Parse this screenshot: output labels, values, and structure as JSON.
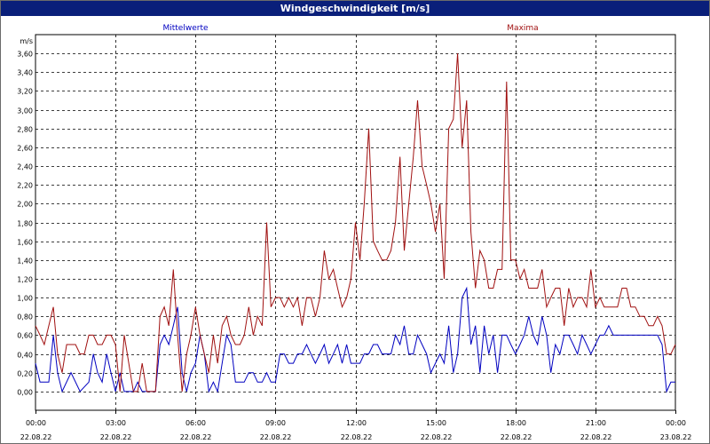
{
  "window": {
    "title": "Windgeschwindigkeit [m/s]"
  },
  "chart_data": {
    "type": "line",
    "title": "Windgeschwindigkeit [m/s]",
    "ylabel": "m/s",
    "ylim": [
      -0.2,
      3.8
    ],
    "yticks": [
      0,
      0.2,
      0.4,
      0.6,
      0.8,
      1.0,
      1.2,
      1.4,
      1.6,
      1.8,
      2.0,
      2.2,
      2.4,
      2.6,
      2.8,
      3.0,
      3.2,
      3.4,
      3.6
    ],
    "ytick_labels": [
      "0,00",
      "0,20",
      "0,40",
      "0,60",
      "0,80",
      "1,00",
      "1,20",
      "1,40",
      "1,60",
      "1,80",
      "2,00",
      "2,20",
      "2,40",
      "2,60",
      "2,80",
      "3,00",
      "3,20",
      "3,40",
      "3,60"
    ],
    "xlim": [
      0,
      24
    ],
    "xticks": [
      {
        "hour": 0,
        "time": "00:00",
        "date": "22.08.22"
      },
      {
        "hour": 3,
        "time": "03:00",
        "date": "22.08.22"
      },
      {
        "hour": 6,
        "time": "06:00",
        "date": "22.08.22"
      },
      {
        "hour": 9,
        "time": "09:00",
        "date": "22.08.22"
      },
      {
        "hour": 12,
        "time": "12:00",
        "date": "22.08.22"
      },
      {
        "hour": 15,
        "time": "15:00",
        "date": "22.08.22"
      },
      {
        "hour": 18,
        "time": "18:00",
        "date": "22.08.22"
      },
      {
        "hour": 21,
        "time": "21:00",
        "date": "22.08.22"
      },
      {
        "hour": 24,
        "time": "00:00",
        "date": "23.08.22"
      }
    ],
    "grid": true,
    "series": [
      {
        "name": "Mittelwerte",
        "color": "#0000c0",
        "points": [
          [
            0,
            0.3
          ],
          [
            0.17,
            0.1
          ],
          [
            0.5,
            0.1
          ],
          [
            0.67,
            0.6
          ],
          [
            0.83,
            0.2
          ],
          [
            1.0,
            0.0
          ],
          [
            1.33,
            0.2
          ],
          [
            1.67,
            0.0
          ],
          [
            2.0,
            0.1
          ],
          [
            2.17,
            0.4
          ],
          [
            2.33,
            0.2
          ],
          [
            2.5,
            0.1
          ],
          [
            2.67,
            0.4
          ],
          [
            2.83,
            0.2
          ],
          [
            3.0,
            0.0
          ],
          [
            3.17,
            0.2
          ],
          [
            3.33,
            0.0
          ],
          [
            3.5,
            0.0
          ],
          [
            3.67,
            0.0
          ],
          [
            3.83,
            0.1
          ],
          [
            4.0,
            0.0
          ],
          [
            4.17,
            0.0
          ],
          [
            4.33,
            0.0
          ],
          [
            4.5,
            0.0
          ],
          [
            4.67,
            0.5
          ],
          [
            4.83,
            0.6
          ],
          [
            5.0,
            0.5
          ],
          [
            5.17,
            0.7
          ],
          [
            5.33,
            0.9
          ],
          [
            5.5,
            0.2
          ],
          [
            5.67,
            0.0
          ],
          [
            5.83,
            0.2
          ],
          [
            6.0,
            0.3
          ],
          [
            6.17,
            0.6
          ],
          [
            6.33,
            0.4
          ],
          [
            6.5,
            0.0
          ],
          [
            6.67,
            0.1
          ],
          [
            6.83,
            0.0
          ],
          [
            7.0,
            0.3
          ],
          [
            7.17,
            0.6
          ],
          [
            7.33,
            0.5
          ],
          [
            7.5,
            0.1
          ],
          [
            7.67,
            0.1
          ],
          [
            7.83,
            0.1
          ],
          [
            8.0,
            0.2
          ],
          [
            8.17,
            0.2
          ],
          [
            8.33,
            0.1
          ],
          [
            8.5,
            0.1
          ],
          [
            8.67,
            0.2
          ],
          [
            8.83,
            0.1
          ],
          [
            9.0,
            0.1
          ],
          [
            9.17,
            0.4
          ],
          [
            9.33,
            0.4
          ],
          [
            9.5,
            0.3
          ],
          [
            9.67,
            0.3
          ],
          [
            9.83,
            0.4
          ],
          [
            10.0,
            0.4
          ],
          [
            10.17,
            0.5
          ],
          [
            10.33,
            0.4
          ],
          [
            10.5,
            0.3
          ],
          [
            10.67,
            0.4
          ],
          [
            10.83,
            0.5
          ],
          [
            11.0,
            0.3
          ],
          [
            11.17,
            0.4
          ],
          [
            11.33,
            0.5
          ],
          [
            11.5,
            0.3
          ],
          [
            11.67,
            0.5
          ],
          [
            11.83,
            0.3
          ],
          [
            12.0,
            0.3
          ],
          [
            12.17,
            0.3
          ],
          [
            12.33,
            0.4
          ],
          [
            12.5,
            0.4
          ],
          [
            12.67,
            0.5
          ],
          [
            12.83,
            0.5
          ],
          [
            13.0,
            0.4
          ],
          [
            13.17,
            0.4
          ],
          [
            13.33,
            0.4
          ],
          [
            13.5,
            0.6
          ],
          [
            13.67,
            0.5
          ],
          [
            13.83,
            0.7
          ],
          [
            14.0,
            0.4
          ],
          [
            14.17,
            0.4
          ],
          [
            14.33,
            0.6
          ],
          [
            14.5,
            0.5
          ],
          [
            14.67,
            0.4
          ],
          [
            14.83,
            0.2
          ],
          [
            15.0,
            0.3
          ],
          [
            15.17,
            0.4
          ],
          [
            15.33,
            0.3
          ],
          [
            15.5,
            0.7
          ],
          [
            15.67,
            0.2
          ],
          [
            15.83,
            0.4
          ],
          [
            16.0,
            1.0
          ],
          [
            16.17,
            1.1
          ],
          [
            16.33,
            0.5
          ],
          [
            16.5,
            0.7
          ],
          [
            16.67,
            0.2
          ],
          [
            16.83,
            0.7
          ],
          [
            17.0,
            0.4
          ],
          [
            17.17,
            0.6
          ],
          [
            17.33,
            0.2
          ],
          [
            17.5,
            0.6
          ],
          [
            17.67,
            0.6
          ],
          [
            17.83,
            0.5
          ],
          [
            18.0,
            0.4
          ],
          [
            18.17,
            0.5
          ],
          [
            18.33,
            0.6
          ],
          [
            18.5,
            0.8
          ],
          [
            18.67,
            0.6
          ],
          [
            18.83,
            0.5
          ],
          [
            19.0,
            0.8
          ],
          [
            19.17,
            0.6
          ],
          [
            19.33,
            0.2
          ],
          [
            19.5,
            0.5
          ],
          [
            19.67,
            0.4
          ],
          [
            19.83,
            0.6
          ],
          [
            20.0,
            0.6
          ],
          [
            20.17,
            0.5
          ],
          [
            20.33,
            0.4
          ],
          [
            20.5,
            0.6
          ],
          [
            20.67,
            0.5
          ],
          [
            20.83,
            0.4
          ],
          [
            21.0,
            0.5
          ],
          [
            21.17,
            0.6
          ],
          [
            21.33,
            0.6
          ],
          [
            21.5,
            0.7
          ],
          [
            21.67,
            0.6
          ],
          [
            21.83,
            0.6
          ],
          [
            22.0,
            0.6
          ],
          [
            22.17,
            0.6
          ],
          [
            22.33,
            0.6
          ],
          [
            22.5,
            0.6
          ],
          [
            22.67,
            0.6
          ],
          [
            22.83,
            0.6
          ],
          [
            23.0,
            0.6
          ],
          [
            23.17,
            0.6
          ],
          [
            23.33,
            0.6
          ],
          [
            23.5,
            0.5
          ],
          [
            23.67,
            0.0
          ],
          [
            23.83,
            0.1
          ],
          [
            24.0,
            0.1
          ]
        ]
      },
      {
        "name": "Maxima",
        "color": "#a01010",
        "points": [
          [
            0,
            0.7
          ],
          [
            0.17,
            0.6
          ],
          [
            0.33,
            0.5
          ],
          [
            0.5,
            0.7
          ],
          [
            0.67,
            0.9
          ],
          [
            0.83,
            0.4
          ],
          [
            1.0,
            0.2
          ],
          [
            1.17,
            0.5
          ],
          [
            1.33,
            0.5
          ],
          [
            1.5,
            0.5
          ],
          [
            1.67,
            0.4
          ],
          [
            1.83,
            0.4
          ],
          [
            2.0,
            0.6
          ],
          [
            2.17,
            0.6
          ],
          [
            2.33,
            0.5
          ],
          [
            2.5,
            0.5
          ],
          [
            2.67,
            0.6
          ],
          [
            2.83,
            0.6
          ],
          [
            3.0,
            0.5
          ],
          [
            3.17,
            0.0
          ],
          [
            3.33,
            0.6
          ],
          [
            3.5,
            0.3
          ],
          [
            3.67,
            0.0
          ],
          [
            3.83,
            0.0
          ],
          [
            4.0,
            0.3
          ],
          [
            4.17,
            0.0
          ],
          [
            4.33,
            0.0
          ],
          [
            4.5,
            0.0
          ],
          [
            4.67,
            0.8
          ],
          [
            4.83,
            0.9
          ],
          [
            5.0,
            0.7
          ],
          [
            5.17,
            1.3
          ],
          [
            5.33,
            0.6
          ],
          [
            5.5,
            0.0
          ],
          [
            5.67,
            0.4
          ],
          [
            5.83,
            0.6
          ],
          [
            6.0,
            0.9
          ],
          [
            6.17,
            0.6
          ],
          [
            6.33,
            0.4
          ],
          [
            6.5,
            0.2
          ],
          [
            6.67,
            0.6
          ],
          [
            6.83,
            0.3
          ],
          [
            7.0,
            0.7
          ],
          [
            7.17,
            0.8
          ],
          [
            7.33,
            0.6
          ],
          [
            7.5,
            0.5
          ],
          [
            7.67,
            0.5
          ],
          [
            7.83,
            0.6
          ],
          [
            8.0,
            0.9
          ],
          [
            8.17,
            0.6
          ],
          [
            8.33,
            0.8
          ],
          [
            8.5,
            0.7
          ],
          [
            8.67,
            1.8
          ],
          [
            8.83,
            0.9
          ],
          [
            9.0,
            1.0
          ],
          [
            9.17,
            1.0
          ],
          [
            9.33,
            0.9
          ],
          [
            9.5,
            1.0
          ],
          [
            9.67,
            0.9
          ],
          [
            9.83,
            1.0
          ],
          [
            10.0,
            0.7
          ],
          [
            10.17,
            1.0
          ],
          [
            10.33,
            1.0
          ],
          [
            10.5,
            0.8
          ],
          [
            10.67,
            1.0
          ],
          [
            10.83,
            1.5
          ],
          [
            11.0,
            1.2
          ],
          [
            11.17,
            1.3
          ],
          [
            11.33,
            1.1
          ],
          [
            11.5,
            0.9
          ],
          [
            11.67,
            1.0
          ],
          [
            11.83,
            1.2
          ],
          [
            12.0,
            1.8
          ],
          [
            12.17,
            1.4
          ],
          [
            12.33,
            2.0
          ],
          [
            12.5,
            2.8
          ],
          [
            12.67,
            1.6
          ],
          [
            12.83,
            1.5
          ],
          [
            13.0,
            1.4
          ],
          [
            13.17,
            1.4
          ],
          [
            13.33,
            1.5
          ],
          [
            13.5,
            1.8
          ],
          [
            13.67,
            2.5
          ],
          [
            13.83,
            1.5
          ],
          [
            14.0,
            2.0
          ],
          [
            14.17,
            2.5
          ],
          [
            14.33,
            3.1
          ],
          [
            14.5,
            2.4
          ],
          [
            14.67,
            2.2
          ],
          [
            14.83,
            2.0
          ],
          [
            15.0,
            1.7
          ],
          [
            15.17,
            2.0
          ],
          [
            15.33,
            1.2
          ],
          [
            15.5,
            2.8
          ],
          [
            15.67,
            2.9
          ],
          [
            15.83,
            3.6
          ],
          [
            16.0,
            2.6
          ],
          [
            16.17,
            3.1
          ],
          [
            16.33,
            1.7
          ],
          [
            16.5,
            1.1
          ],
          [
            16.67,
            1.5
          ],
          [
            16.83,
            1.4
          ],
          [
            17.0,
            1.1
          ],
          [
            17.17,
            1.1
          ],
          [
            17.33,
            1.3
          ],
          [
            17.5,
            1.3
          ],
          [
            17.67,
            3.3
          ],
          [
            17.83,
            1.4
          ],
          [
            18.0,
            1.4
          ],
          [
            18.17,
            1.2
          ],
          [
            18.33,
            1.3
          ],
          [
            18.5,
            1.1
          ],
          [
            18.67,
            1.1
          ],
          [
            18.83,
            1.1
          ],
          [
            19.0,
            1.3
          ],
          [
            19.17,
            0.9
          ],
          [
            19.33,
            1.0
          ],
          [
            19.5,
            1.1
          ],
          [
            19.67,
            1.1
          ],
          [
            19.83,
            0.7
          ],
          [
            20.0,
            1.1
          ],
          [
            20.17,
            0.9
          ],
          [
            20.33,
            1.0
          ],
          [
            20.5,
            1.0
          ],
          [
            20.67,
            0.9
          ],
          [
            20.83,
            1.3
          ],
          [
            21.0,
            0.9
          ],
          [
            21.17,
            1.0
          ],
          [
            21.33,
            0.9
          ],
          [
            21.5,
            0.9
          ],
          [
            21.67,
            0.9
          ],
          [
            21.83,
            0.9
          ],
          [
            22.0,
            1.1
          ],
          [
            22.17,
            1.1
          ],
          [
            22.33,
            0.9
          ],
          [
            22.5,
            0.9
          ],
          [
            22.67,
            0.8
          ],
          [
            22.83,
            0.8
          ],
          [
            23.0,
            0.7
          ],
          [
            23.17,
            0.7
          ],
          [
            23.33,
            0.8
          ],
          [
            23.5,
            0.7
          ],
          [
            23.67,
            0.4
          ],
          [
            23.83,
            0.4
          ],
          [
            24.0,
            0.5
          ]
        ]
      }
    ]
  }
}
